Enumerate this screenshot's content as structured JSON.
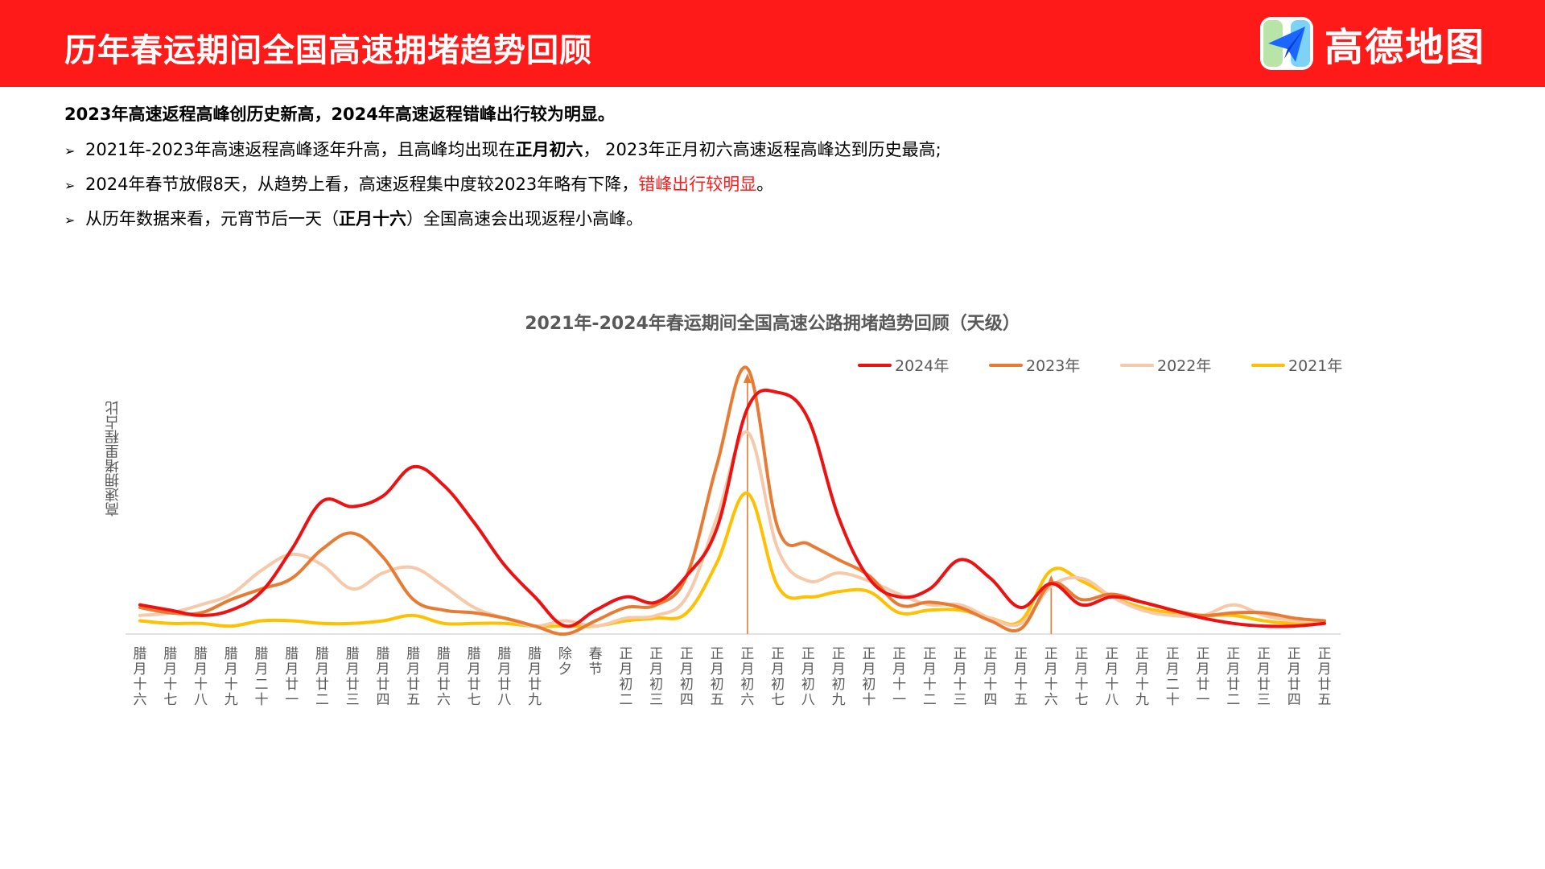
{
  "header": {
    "title": "历年春运期间全国高速拥堵趋势回顾",
    "brand_name": "高德地图",
    "brand_color": "#ff1a1a"
  },
  "summary": {
    "headline": "2023年高速返程高峰创历史新高，2024年高速返程错峰出行较为明显。",
    "bullets": [
      {
        "marker": "➢",
        "pre": "2021年-2023年高速返程高峰逐年升高，且高峰均出现在",
        "emph": "正月初六",
        "post": "， 2023年正月初六高速返程高峰达到历史最高;"
      },
      {
        "marker": "➢",
        "pre": "2024年春节放假8天，从趋势上看，高速返程集中度较2023年略有下降，",
        "emph": "错峰出行较明显",
        "post": "。"
      },
      {
        "marker": "➢",
        "pre": "从历年数据来看，元宵节后一天（",
        "emph": "正月十六",
        "post": "）全国高速会出现返程小高峰。"
      }
    ]
  },
  "chart_data": {
    "type": "line",
    "title": "2021年-2024年春运期间全国高速公路拥堵趋势回顾（天级）",
    "ylabel": "高速拥堵里程占比",
    "xlabel": "",
    "ylim": [
      0,
      100
    ],
    "grid": false,
    "legend_position": "top-right",
    "annotations": [
      "arrow at 正月初六",
      "arrow at 正月十六"
    ],
    "categories": [
      "腊月十六",
      "腊月十七",
      "腊月十八",
      "腊月十九",
      "腊月二十",
      "腊月廿一",
      "腊月廿二",
      "腊月廿三",
      "腊月廿四",
      "腊月廿五",
      "腊月廿六",
      "腊月廿七",
      "腊月廿八",
      "腊月廿九",
      "除夕",
      "春节",
      "正月初二",
      "正月初三",
      "正月初四",
      "正月初五",
      "正月初六",
      "正月初七",
      "正月初八",
      "正月初九",
      "正月初十",
      "正月十一",
      "正月十二",
      "正月十三",
      "正月十四",
      "正月十五",
      "正月十六",
      "正月十七",
      "正月十八",
      "正月十九",
      "正月二十",
      "正月廿一",
      "正月廿二",
      "正月廿三",
      "正月廿四",
      "正月廿五"
    ],
    "series": [
      {
        "name": "2024年",
        "color": "#ee1111",
        "values": [
          11,
          9,
          7,
          9,
          16,
          32,
          50,
          48,
          52,
          63,
          56,
          42,
          26,
          14,
          3,
          9,
          14,
          12,
          22,
          40,
          85,
          91,
          81,
          44,
          21,
          14,
          17,
          28,
          21,
          10,
          19,
          11,
          14,
          12,
          9,
          6,
          4,
          3,
          3,
          4
        ]
      },
      {
        "name": "2023年",
        "color": "#e87b34",
        "values": [
          10,
          8,
          8,
          13,
          17,
          21,
          32,
          38,
          29,
          13,
          9,
          8,
          6,
          3,
          0,
          5,
          10,
          11,
          22,
          64,
          100,
          40,
          34,
          28,
          22,
          11,
          12,
          10,
          5,
          2,
          19,
          13,
          15,
          12,
          9,
          7,
          8,
          8,
          6,
          5
        ]
      },
      {
        "name": "2022年",
        "color": "#f5c9a9",
        "values": [
          7,
          8,
          11,
          15,
          24,
          30,
          26,
          17,
          23,
          25,
          18,
          10,
          6,
          3,
          5,
          3,
          6,
          7,
          14,
          44,
          76,
          32,
          20,
          23,
          20,
          15,
          11,
          11,
          6,
          4,
          18,
          21,
          14,
          9,
          7,
          7,
          11,
          7,
          5,
          5
        ]
      },
      {
        "name": "2021年",
        "color": "#ffc000",
        "values": [
          5,
          4,
          4,
          3,
          5,
          5,
          4,
          4,
          5,
          7,
          4,
          4,
          4,
          3,
          3,
          3,
          5,
          6,
          8,
          27,
          53,
          18,
          14,
          16,
          16,
          8,
          9,
          9,
          6,
          5,
          24,
          20,
          14,
          10,
          8,
          7,
          7,
          5,
          4,
          5
        ]
      }
    ]
  }
}
